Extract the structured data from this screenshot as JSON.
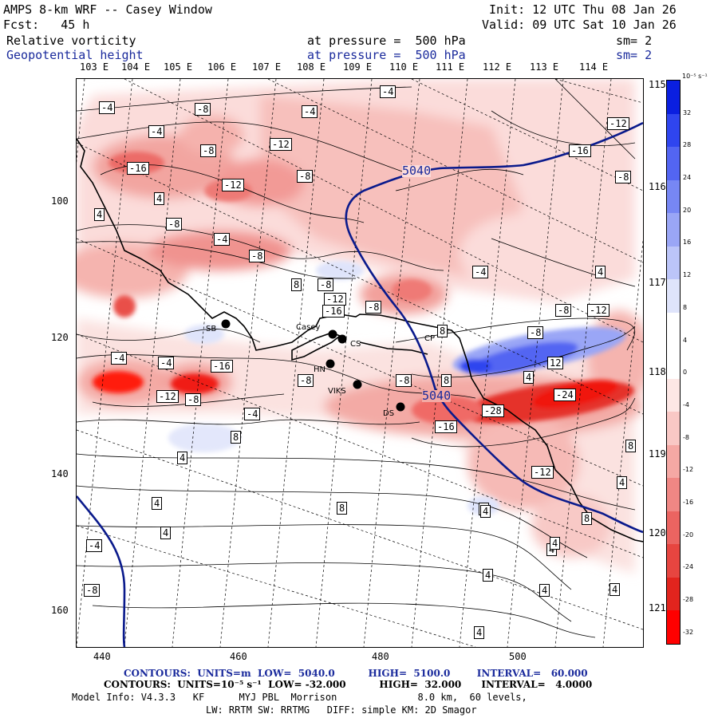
{
  "header": {
    "title": "AMPS 8-km WRF -- Casey Window",
    "forecast": "Fcst:   45 h",
    "init": "Init: 12 UTC Thu 08 Jan 26",
    "valid": "Valid: 09 UTC Sat 10 Jan 26",
    "field1_name": "Relative vorticity",
    "field1_level": "at pressure =  500 hPa",
    "field1_sm": "sm= 2",
    "field2_name": "Geopotential height",
    "field2_level": "at pressure =  500 hPa",
    "field2_sm": "sm= 2"
  },
  "colors": {
    "blue_text": "#1a2a9c",
    "height_contour": "#0a1a8c",
    "coast": "#000000"
  },
  "longitude_labels_top": [
    "103 E",
    "104 E",
    "105 E",
    "106 E",
    "107 E",
    "108 E",
    "109 E",
    "110 E",
    "111 E",
    "112 E",
    "113 E",
    "114 E"
  ],
  "longitude_labels_right": [
    "115 E",
    "116 E",
    "117 E",
    "118 E",
    "119 E",
    "120 E",
    "121 E"
  ],
  "x_ticks": [
    "440",
    "460",
    "480",
    "500"
  ],
  "y_ticks": [
    "100",
    "120",
    "140",
    "160"
  ],
  "colorbar": {
    "units": "10⁻⁵ s⁻¹",
    "ticks": [
      "32",
      "28",
      "24",
      "20",
      "16",
      "12",
      "8",
      "4",
      "0",
      "-4",
      "-8",
      "-12",
      "-16",
      "-20",
      "-24",
      "-28",
      "-32"
    ],
    "colors": [
      "#0a1fe0",
      "#2f45ef",
      "#5365f2",
      "#7787f4",
      "#9aa6f6",
      "#bcc5f9",
      "#dfe4fb",
      "#ffffff",
      "#ffffff",
      "#fde7e5",
      "#f9c8c5",
      "#f5a8a4",
      "#f08784",
      "#eb6461",
      "#e74540",
      "#e2241e",
      "#ff0000"
    ]
  },
  "contour_labels": [
    "-4",
    "-8",
    "-4",
    "-4",
    "-4",
    "-8",
    "-12",
    "-12",
    "-16",
    "-16",
    "-8",
    "-8",
    "-12",
    "4",
    "4",
    "-8",
    "-4",
    "-12",
    "-8",
    "-4",
    "4",
    "8",
    "-8",
    "-16",
    "-8",
    "-8",
    "-12",
    "-8",
    "8",
    "-4",
    "-4",
    "-16",
    "-12",
    "-8",
    "-4",
    "-8",
    "-8",
    "8",
    "4",
    "12",
    "-24",
    "-28",
    "-16",
    "8",
    "4",
    "-12",
    "8",
    "4",
    "8",
    "4",
    "4",
    "4",
    "-8",
    "4",
    "4",
    "4",
    "4",
    "4",
    "-4",
    "4",
    "8",
    "4"
  ],
  "height_labels": [
    "5040",
    "5040"
  ],
  "stations": [
    "SB",
    "Casey",
    "CS",
    "HN",
    "CP",
    "VIKS",
    "DS"
  ],
  "footer": {
    "line1_contours": "CONTOURS:  UNITS=m  LOW=  5040.0          HIGH=  5100.0        INTERVAL=   60.000",
    "line2_contours": "CONTOURS:  UNITS=10⁻⁵ s⁻¹  LOW= -32.000          HIGH=  32.000      INTERVAL=   4.0000",
    "line3": "Model Info: V4.3.3   KF      MYJ PBL  Morrison              8.0 km,  60 levels,",
    "line4": "LW: RRTM SW: RRTMG   DIFF: simple KM: 2D Smagor"
  }
}
